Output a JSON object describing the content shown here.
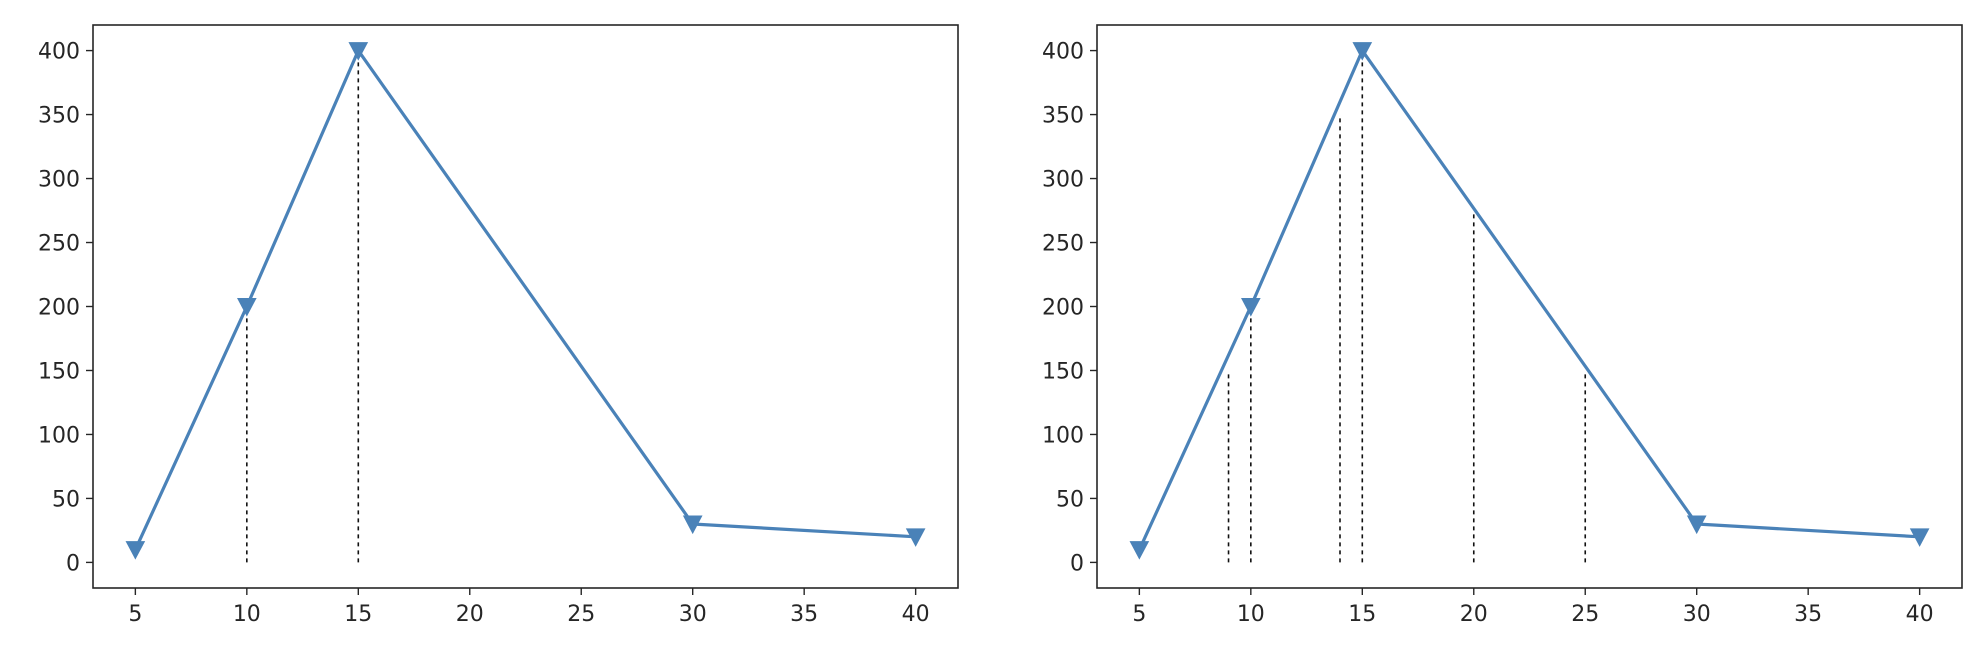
{
  "chart_data": [
    {
      "type": "line",
      "title": "",
      "xlabel": "",
      "ylabel": "",
      "xlim": [
        3.1,
        41.9
      ],
      "ylim": [
        -20,
        420
      ],
      "xticks": [
        5,
        10,
        15,
        20,
        25,
        30,
        35,
        40
      ],
      "yticks": [
        0,
        50,
        100,
        150,
        200,
        250,
        300,
        350,
        400
      ],
      "grid": false,
      "series": [
        {
          "x": [
            5,
            10,
            15,
            30,
            40
          ],
          "y": [
            10,
            200,
            400,
            30,
            20
          ],
          "marker": "triangle-down",
          "color": "#4a82b8"
        }
      ],
      "vlines": [
        {
          "x": 10,
          "ymin": 0,
          "ymax": 200
        },
        {
          "x": 15,
          "ymin": 0,
          "ymax": 400
        }
      ]
    },
    {
      "type": "line",
      "title": "",
      "xlabel": "",
      "ylabel": "",
      "xlim": [
        3.1,
        41.9
      ],
      "ylim": [
        -20,
        420
      ],
      "xticks": [
        5,
        10,
        15,
        20,
        25,
        30,
        35,
        40
      ],
      "yticks": [
        0,
        50,
        100,
        150,
        200,
        250,
        300,
        350,
        400
      ],
      "grid": false,
      "series": [
        {
          "x": [
            5,
            10,
            15,
            30,
            40
          ],
          "y": [
            10,
            200,
            400,
            30,
            20
          ],
          "marker": "triangle-down",
          "color": "#4a82b8"
        }
      ],
      "vlines": [
        {
          "x": 9,
          "ymin": 0,
          "ymax": 150
        },
        {
          "x": 10,
          "ymin": 0,
          "ymax": 200
        },
        {
          "x": 14,
          "ymin": 0,
          "ymax": 350
        },
        {
          "x": 15,
          "ymin": 0,
          "ymax": 400
        },
        {
          "x": 20,
          "ymin": 0,
          "ymax": 275
        },
        {
          "x": 25,
          "ymin": 0,
          "ymax": 150
        }
      ]
    }
  ]
}
